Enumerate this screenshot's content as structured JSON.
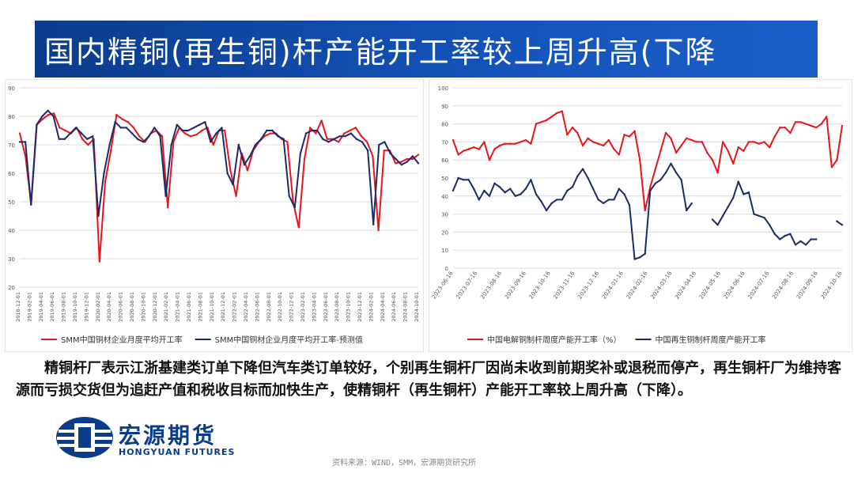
{
  "title": "国内精铜(再生铜)杆产能开工率较上周升高(下降",
  "body_text": "精铜杆厂表示江浙基建类订单下降但汽车类订单较好，个别再生铜杆厂因尚未收到前期奖补或退税而停产，再生铜杆厂为维持客源而亏损交货但为追赶产值和税收目标而加快生产，使精铜杆（再生铜杆）产能开工率较上周升高（下降）。",
  "logo": {
    "name_cn": "宏源期货",
    "name_en": "HONGYUAN FUTURES"
  },
  "source": "资料来源：WIND，SMM，宏源期货研究所",
  "colors": {
    "title_bg": "#1452b8",
    "red": "#e8141c",
    "navy": "#1b2a6b"
  },
  "chart_data": [
    {
      "type": "line",
      "ylim": [
        20,
        90
      ],
      "yticks": [
        20,
        30,
        40,
        50,
        60,
        70,
        80,
        90
      ],
      "xtick_labels": [
        "2018-12-01",
        "2019-02-01",
        "2019-04-01",
        "2019-06-01",
        "2019-08-01",
        "2019-10-01",
        "2019-12-01",
        "2020-02-01",
        "2020-04-01",
        "2020-06-01",
        "2020-08-01",
        "2020-10-01",
        "2020-12-01",
        "2021-02-01",
        "2021-04-01",
        "2021-06-01",
        "2021-08-01",
        "2021-10-01",
        "2021-12-01",
        "2022-02-01",
        "2022-04-01",
        "2022-06-01",
        "2022-08-01",
        "2022-10-01",
        "2022-12-01",
        "2023-02-01",
        "2023-04-01",
        "2023-06-01",
        "2023-08-01",
        "2023-10-01",
        "2023-12-01",
        "2024-02-01",
        "2024-04-01",
        "2024-06-01",
        "2024-08-01",
        "2024-10-01"
      ],
      "legend_position": "bottom",
      "series": [
        {
          "name": "SMM中国铜材企业月度平均开工率",
          "color": "#e8141c",
          "values": [
            74,
            66,
            49,
            77,
            79,
            80.5,
            81,
            76,
            75,
            74,
            76,
            72,
            70,
            72,
            29,
            57,
            68,
            80.5,
            79,
            78,
            76,
            73,
            71,
            74,
            75,
            73,
            48,
            71,
            76,
            74,
            73,
            73.5,
            75,
            76,
            70,
            75,
            75,
            61,
            52,
            67,
            61,
            68,
            71,
            73,
            74,
            74,
            72,
            71,
            50,
            41,
            65,
            76,
            74,
            78.5,
            72,
            72,
            71,
            74,
            75,
            76,
            73,
            71,
            66,
            40,
            68,
            68,
            63.5,
            64,
            65,
            65,
            66.5
          ]
        },
        {
          "name": "SMM中国铜材企业月度平均开工率-预测值",
          "color": "#1b2a6b",
          "values": [
            71,
            71,
            49,
            77,
            80,
            82,
            80,
            72,
            72,
            74,
            76,
            74,
            72,
            73,
            45,
            60,
            70,
            78,
            76,
            76,
            74,
            72,
            71,
            73,
            76,
            73,
            52,
            70,
            77,
            75,
            75,
            76,
            77,
            78,
            71,
            74,
            76,
            60,
            56,
            70,
            63,
            66,
            70,
            72,
            75,
            75,
            73,
            72,
            52,
            48,
            67,
            74,
            75,
            75,
            72,
            71,
            72,
            73,
            73,
            74,
            72,
            71,
            68,
            42,
            70,
            71,
            67,
            65,
            63,
            64,
            66,
            63.5
          ]
        }
      ]
    },
    {
      "type": "line",
      "ylim": [
        0,
        100
      ],
      "yticks": [
        0,
        10,
        20,
        30,
        40,
        50,
        60,
        70,
        80,
        90,
        100
      ],
      "xtick_labels": [
        "2023-06-16",
        "2023-07-16",
        "2023-08-16",
        "2023-09-16",
        "2023-10-16",
        "2023-11-16",
        "2023-12-16",
        "2024-01-16",
        "2024-02-16",
        "2024-03-16",
        "2024-04-16",
        "2024-05-16",
        "2024-06-16",
        "2024-07-16",
        "2024-08-16",
        "2024-09-16",
        "2024-10-16"
      ],
      "legend_position": "bottom",
      "series": [
        {
          "name": "中国电解铜制杆周度产能开工率（%）",
          "color": "#e8141c",
          "values": [
            71,
            63,
            65,
            66,
            67,
            66,
            70,
            60,
            66,
            68,
            69,
            69,
            69,
            70,
            71,
            69,
            80,
            81,
            82,
            84,
            86,
            87,
            74,
            78,
            75,
            68,
            72,
            70,
            69,
            68,
            71,
            66,
            63,
            74,
            73,
            76,
            60,
            32,
            45,
            55,
            65,
            75,
            72,
            64,
            68,
            72,
            71,
            70,
            70,
            64,
            60,
            53,
            70,
            65,
            58,
            67,
            65,
            70,
            70,
            69,
            70,
            67,
            73,
            78,
            78,
            75,
            81,
            81,
            80,
            79,
            78,
            80,
            84,
            56,
            60,
            79
          ]
        },
        {
          "name": "中国再生铜制杆周度产能开工率",
          "color": "#1b2a6b",
          "values": [
            43,
            50,
            49,
            49,
            44,
            38,
            43,
            40,
            47,
            45,
            42,
            44,
            40,
            41,
            44,
            49,
            41,
            37,
            32,
            36,
            38,
            38,
            43,
            45,
            51,
            55,
            50,
            44,
            38,
            36,
            38,
            38,
            44,
            41,
            35,
            5,
            6,
            8,
            43,
            47,
            49,
            53,
            58,
            53,
            49,
            32,
            36,
            null,
            null,
            null,
            27,
            24,
            29,
            34,
            39,
            48,
            41,
            42,
            30,
            29,
            28,
            24,
            19,
            16,
            18,
            19,
            13,
            15,
            13,
            16,
            16,
            null,
            null,
            null,
            26,
            24
          ]
        }
      ]
    }
  ]
}
